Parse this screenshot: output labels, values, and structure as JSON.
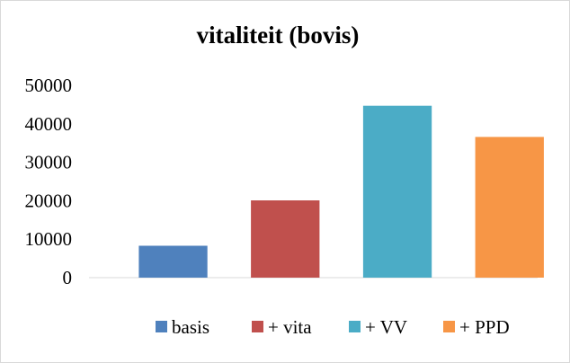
{
  "chart_data": {
    "type": "bar",
    "title": "vitaliteit (bovis)",
    "categories": [
      "basis",
      "+ vita",
      "+ VV",
      "+ PPD"
    ],
    "series": [
      {
        "name": "basis",
        "values": [
          8300,
          null,
          null,
          null
        ],
        "color": "#4F81BD"
      },
      {
        "name": "+ vita",
        "values": [
          null,
          20100,
          null,
          null
        ],
        "color": "#C0504D"
      },
      {
        "name": "+ VV",
        "values": [
          null,
          null,
          44700,
          null
        ],
        "color": "#4BACC6"
      },
      {
        "name": "+ PPD",
        "values": [
          null,
          null,
          null,
          36600
        ],
        "color": "#F79646"
      }
    ],
    "yticks": [
      "0",
      "10000",
      "20000",
      "30000",
      "40000",
      "50000"
    ],
    "ylim": [
      0,
      50000
    ],
    "grid": false,
    "legend_position": "bottom",
    "xlabel": "",
    "ylabel": ""
  }
}
